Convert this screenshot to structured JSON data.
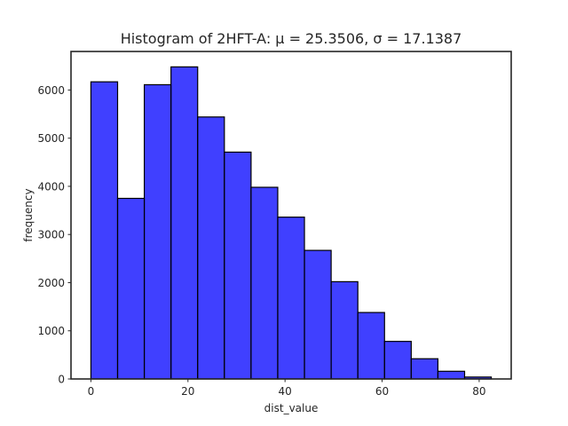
{
  "chart_data": {
    "type": "bar",
    "title": "Histogram of 2HFT-A: μ = 25.3506, σ = 17.1387",
    "xlabel": "dist_value",
    "ylabel": "frequency",
    "bin_edges": [
      0,
      5.5,
      11,
      16.5,
      22,
      27.5,
      33,
      38.5,
      44,
      49.5,
      55,
      60.5,
      66,
      71.5,
      77,
      82.5
    ],
    "values": [
      6170,
      3750,
      6110,
      6480,
      5440,
      4710,
      3980,
      3360,
      2670,
      2020,
      1380,
      780,
      420,
      160,
      40
    ],
    "xlim": [
      -4.1,
      86.6
    ],
    "ylim": [
      0,
      6800
    ],
    "xticks": [
      0,
      20,
      40,
      60,
      80
    ],
    "yticks": [
      0,
      1000,
      2000,
      3000,
      4000,
      5000,
      6000
    ],
    "bar_color": "#0000ff",
    "bar_alpha": 0.75,
    "edge_color": "#000000",
    "grid": false
  }
}
